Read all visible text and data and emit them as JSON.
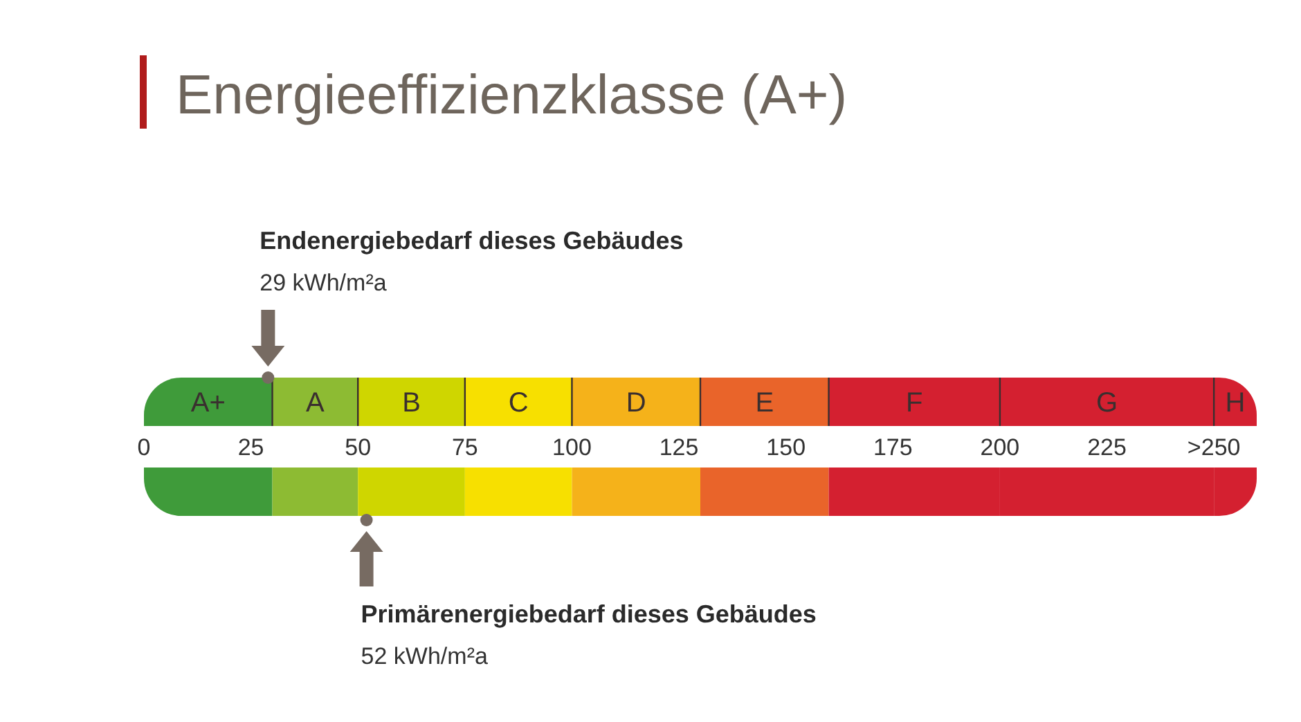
{
  "chart_data": {
    "type": "bar",
    "orientation": "horizontal",
    "stacked": true,
    "title": "Energieeffizienzklasse (A+)",
    "categories": [
      null,
      null
    ],
    "xlim": [
      0,
      260
    ],
    "xticks": [
      0,
      25,
      50,
      75,
      100,
      125,
      150,
      175,
      200,
      225,
      {
        "value": 250,
        "label": ">250"
      }
    ],
    "series": [
      {
        "name": "A+",
        "color": "#3f9b3a",
        "values": [
          30,
          30
        ]
      },
      {
        "name": "A",
        "color": "#8dbb33",
        "values": [
          20,
          20
        ]
      },
      {
        "name": "B",
        "color": "#cfd600",
        "values": [
          25,
          25
        ]
      },
      {
        "name": "C",
        "color": "#f7e000",
        "values": [
          25,
          25
        ]
      },
      {
        "name": "D",
        "color": "#f5b21a",
        "values": [
          30,
          30
        ]
      },
      {
        "name": "E",
        "color": "#e9642a",
        "values": [
          30,
          30
        ]
      },
      {
        "name": "F",
        "color": "#d42030",
        "values": [
          40,
          40
        ]
      },
      {
        "name": "G",
        "color": "#d42030",
        "values": [
          50,
          50
        ]
      },
      {
        "name": "H",
        "color": "#d42030",
        "values": [
          10,
          10
        ]
      }
    ],
    "ref_lines": [
      {
        "axis": "x",
        "value": 29,
        "label": "29 kWh/m²a",
        "color": "#776b62"
      },
      {
        "axis": "x",
        "value": 52,
        "label": "Primärenergiebedarf dieses Gebäudes",
        "color": "#776b62"
      }
    ],
    "annotations": [
      "Endenergiebedarf dieses Gebäudes",
      "52 kWh/m²a"
    ]
  }
}
